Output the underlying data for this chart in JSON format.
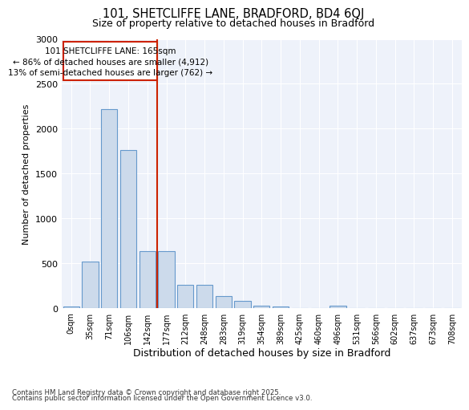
{
  "title_line1": "101, SHETCLIFFE LANE, BRADFORD, BD4 6QJ",
  "title_line2": "Size of property relative to detached houses in Bradford",
  "xlabel": "Distribution of detached houses by size in Bradford",
  "ylabel": "Number of detached properties",
  "annotation_line1": "101 SHETCLIFFE LANE: 165sqm",
  "annotation_line2": "← 86% of detached houses are smaller (4,912)",
  "annotation_line3": "13% of semi-detached houses are larger (762) →",
  "categories": [
    "0sqm",
    "35sqm",
    "71sqm",
    "106sqm",
    "142sqm",
    "177sqm",
    "212sqm",
    "248sqm",
    "283sqm",
    "319sqm",
    "354sqm",
    "389sqm",
    "425sqm",
    "460sqm",
    "496sqm",
    "531sqm",
    "566sqm",
    "602sqm",
    "637sqm",
    "673sqm",
    "708sqm"
  ],
  "bar_values": [
    20,
    520,
    2220,
    1760,
    640,
    640,
    265,
    265,
    140,
    80,
    30,
    20,
    5,
    0,
    30,
    0,
    0,
    0,
    0,
    0,
    0
  ],
  "bar_color": "#ccdaeb",
  "bar_edge_color": "#6699cc",
  "vline_x_idx": 5,
  "vline_color": "#cc2200",
  "annotation_box_color": "#cc2200",
  "background_color": "#eef2fa",
  "ylim": [
    0,
    3000
  ],
  "yticks": [
    0,
    500,
    1000,
    1500,
    2000,
    2500,
    3000
  ],
  "footer_line1": "Contains HM Land Registry data © Crown copyright and database right 2025.",
  "footer_line2": "Contains public sector information licensed under the Open Government Licence v3.0."
}
